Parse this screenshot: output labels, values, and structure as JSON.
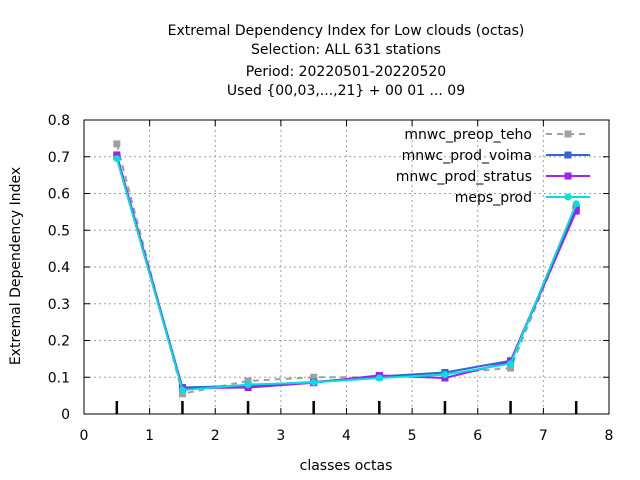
{
  "chart_data": {
    "type": "line",
    "title_lines": [
      "Extremal Dependency Index  for Low clouds (octas)",
      "Selection: ALL    631 stations",
      "Period: 20220501-20220520",
      "Used {00,03,...,21} + 00 01 ... 09"
    ],
    "xlabel": "classes octas",
    "ylabel": "Extremal Dependency Index",
    "xlim": [
      0,
      8
    ],
    "ylim": [
      0,
      0.8
    ],
    "xticks": [
      0,
      1,
      2,
      3,
      4,
      5,
      6,
      7,
      8
    ],
    "xtick_labels": [
      "0",
      "1",
      "2",
      "3",
      "4",
      "5",
      "6",
      "7",
      "8"
    ],
    "yticks": [
      0,
      0.1,
      0.2,
      0.3,
      0.4,
      0.5,
      0.6,
      0.7,
      0.8
    ],
    "ytick_labels": [
      "0",
      "0.1",
      "0.2",
      "0.3",
      "0.4",
      "0.5",
      "0.6",
      "0.7",
      "0.8"
    ],
    "grid": true,
    "legend_position": "top-right",
    "x": [
      0.5,
      1.5,
      2.5,
      3.5,
      4.5,
      5.5,
      6.5,
      7.5
    ],
    "series": [
      {
        "name": "mnwc_preop_teho",
        "color": "#a0a0a0",
        "dashed": true,
        "values": [
          0.735,
          0.055,
          0.09,
          0.1,
          0.1,
          0.11,
          0.125,
          0.56
        ]
      },
      {
        "name": "mnwc_prod_voima",
        "color": "#3366cc",
        "dashed": false,
        "values": [
          0.7,
          0.072,
          0.077,
          0.087,
          0.102,
          0.113,
          0.145,
          0.56
        ]
      },
      {
        "name": "mnwc_prod_stratus",
        "color": "#a020f0",
        "dashed": false,
        "values": [
          0.705,
          0.07,
          0.072,
          0.085,
          0.105,
          0.098,
          0.142,
          0.552
        ]
      },
      {
        "name": "meps_prod",
        "color": "#00e0e0",
        "dashed": false,
        "values": [
          0.695,
          0.065,
          0.08,
          0.086,
          0.098,
          0.107,
          0.137,
          0.572
        ]
      }
    ]
  }
}
